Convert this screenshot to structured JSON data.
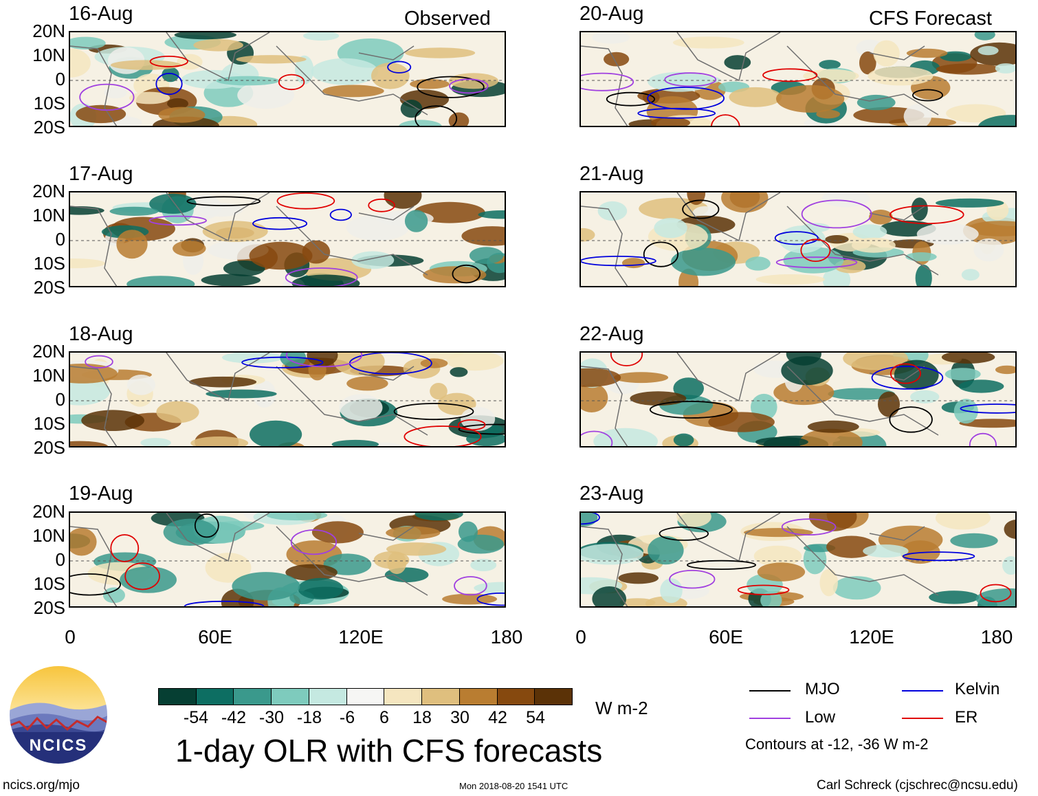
{
  "panels": {
    "observed": {
      "label": "Observed",
      "dates": [
        "16-Aug",
        "17-Aug",
        "18-Aug",
        "19-Aug"
      ]
    },
    "forecast": {
      "label": "CFS Forecast",
      "dates": [
        "20-Aug",
        "21-Aug",
        "22-Aug",
        "23-Aug"
      ]
    }
  },
  "axes": {
    "lat_labels": [
      "20N",
      "10N",
      "0",
      "10S",
      "20S"
    ],
    "lon_labels": [
      "0",
      "60E",
      "120E",
      "180"
    ],
    "lon_range": [
      0,
      180
    ],
    "lat_range": [
      -20,
      20
    ]
  },
  "colorbar": {
    "colors": [
      "#063f33",
      "#0d6e62",
      "#3a998c",
      "#7ecbbd",
      "#c5e9e1",
      "#f6f6f4",
      "#f5e6c0",
      "#dfbf7e",
      "#b97d31",
      "#86490f",
      "#5b3207"
    ],
    "labels": [
      "-54",
      "-42",
      "-30",
      "-18",
      "-6",
      "6",
      "18",
      "30",
      "42",
      "54"
    ],
    "units": "W m-2"
  },
  "legend": {
    "items": [
      {
        "name": "MJO",
        "color": "#000000"
      },
      {
        "name": "Kelvin",
        "color": "#0000dd"
      },
      {
        "name": "Low",
        "color": "#a040e0"
      },
      {
        "name": "ER",
        "color": "#e00000"
      }
    ],
    "note": "Contours at -12, -36 W m-2"
  },
  "logo": {
    "text": "NCICS"
  },
  "title": "1-day OLR with CFS forecasts",
  "footer": {
    "left": "ncics.org/mjo",
    "center": "Mon 2018-08-20 1541 UTC",
    "right": "Carl Schreck (cjschrec@ncsu.edu)"
  }
}
